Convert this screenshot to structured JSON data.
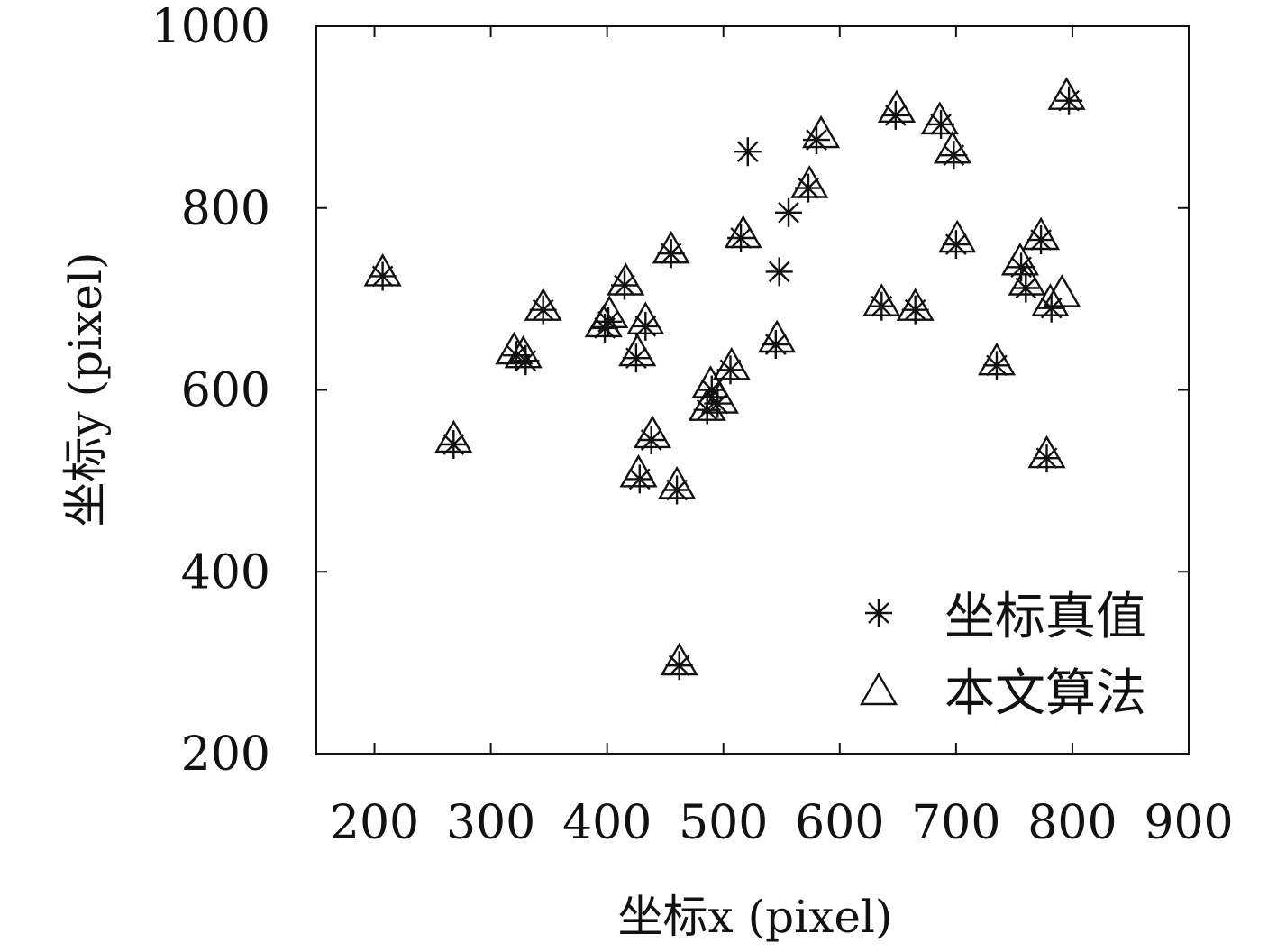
{
  "chart_data": {
    "type": "scatter",
    "xlim": [
      150,
      900
    ],
    "ylim": [
      200,
      1000
    ],
    "x_ticks": [
      "200",
      "300",
      "400",
      "500",
      "600",
      "700",
      "800",
      "900"
    ],
    "y_ticks": [
      "200",
      "400",
      "600",
      "800",
      "1000"
    ],
    "xlabel": "坐标x (pixel)",
    "ylabel": "坐标y (pixel)",
    "legend_position": "bottom-right",
    "grid": false,
    "series": [
      {
        "name": "坐标真值",
        "marker": "asterisk",
        "points": [
          [
            207,
            725
          ],
          [
            268,
            540
          ],
          [
            322,
            638
          ],
          [
            330,
            632
          ],
          [
            345,
            688
          ],
          [
            398,
            668
          ],
          [
            401,
            675
          ],
          [
            415,
            715
          ],
          [
            425,
            635
          ],
          [
            433,
            670
          ],
          [
            438,
            545
          ],
          [
            428,
            502
          ],
          [
            455,
            750
          ],
          [
            460,
            490
          ],
          [
            462,
            297
          ],
          [
            486,
            578
          ],
          [
            490,
            600
          ],
          [
            495,
            585
          ],
          [
            506,
            622
          ],
          [
            515,
            767
          ],
          [
            521,
            862
          ],
          [
            545,
            650
          ],
          [
            548,
            730
          ],
          [
            556,
            795
          ],
          [
            573,
            822
          ],
          [
            580,
            875
          ],
          [
            636,
            692
          ],
          [
            648,
            902
          ],
          [
            665,
            688
          ],
          [
            687,
            892
          ],
          [
            698,
            858
          ],
          [
            700,
            760
          ],
          [
            735,
            627
          ],
          [
            756,
            735
          ],
          [
            760,
            712
          ],
          [
            773,
            765
          ],
          [
            778,
            525
          ],
          [
            782,
            690
          ],
          [
            797,
            918
          ]
        ]
      },
      {
        "name": "本文算法",
        "marker": "triangle",
        "points": [
          [
            207,
            728
          ],
          [
            268,
            545
          ],
          [
            320,
            642
          ],
          [
            328,
            638
          ],
          [
            345,
            690
          ],
          [
            397,
            672
          ],
          [
            402,
            682
          ],
          [
            416,
            718
          ],
          [
            426,
            640
          ],
          [
            433,
            675
          ],
          [
            439,
            550
          ],
          [
            427,
            507
          ],
          [
            455,
            753
          ],
          [
            460,
            494
          ],
          [
            462,
            300
          ],
          [
            486,
            580
          ],
          [
            489,
            605
          ],
          [
            497,
            588
          ],
          [
            507,
            625
          ],
          [
            517,
            770
          ],
          [
            546,
            655
          ],
          [
            574,
            825
          ],
          [
            584,
            880
          ],
          [
            636,
            695
          ],
          [
            649,
            908
          ],
          [
            665,
            690
          ],
          [
            686,
            895
          ],
          [
            697,
            863
          ],
          [
            701,
            765
          ],
          [
            735,
            630
          ],
          [
            755,
            740
          ],
          [
            761,
            718
          ],
          [
            773,
            768
          ],
          [
            778,
            528
          ],
          [
            781,
            695
          ],
          [
            791,
            705
          ],
          [
            795,
            922
          ]
        ]
      }
    ]
  }
}
